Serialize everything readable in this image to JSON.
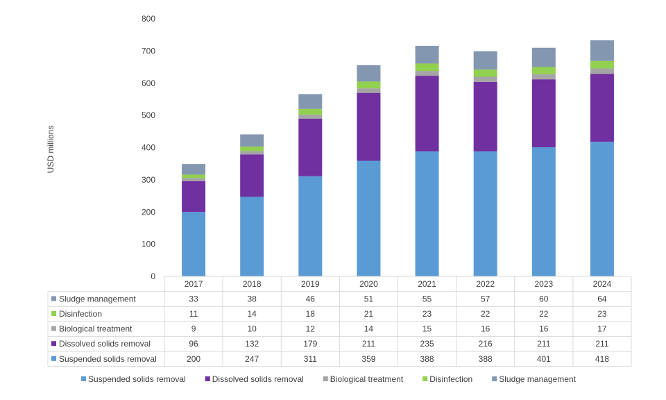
{
  "chart_data": {
    "type": "bar",
    "stacked": true,
    "title": "",
    "xlabel": "",
    "ylabel": "USD millions",
    "ylim": [
      0,
      800
    ],
    "yticks": [
      0,
      100,
      200,
      300,
      400,
      500,
      600,
      700,
      800
    ],
    "grid": false,
    "legend_position": "bottom",
    "data_table": true,
    "categories": [
      "2017",
      "2018",
      "2019",
      "2020",
      "2021",
      "2022",
      "2023",
      "2024"
    ],
    "series": [
      {
        "name": "Suspended solids removal",
        "color": "#5B9BD5",
        "values": [
          200,
          247,
          311,
          359,
          388,
          388,
          401,
          418
        ]
      },
      {
        "name": "Dissolved solids removal",
        "color": "#7030A0",
        "values": [
          96,
          132,
          179,
          211,
          235,
          216,
          211,
          211
        ]
      },
      {
        "name": "Biological treatment",
        "color": "#A5A5A5",
        "values": [
          9,
          10,
          12,
          14,
          15,
          16,
          16,
          17
        ]
      },
      {
        "name": "Disinfection",
        "color": "#92D050",
        "values": [
          11,
          14,
          18,
          21,
          23,
          22,
          22,
          23
        ]
      },
      {
        "name": "Sludge management",
        "color": "#8497B0",
        "values": [
          33,
          38,
          46,
          51,
          55,
          57,
          60,
          64
        ]
      }
    ]
  }
}
